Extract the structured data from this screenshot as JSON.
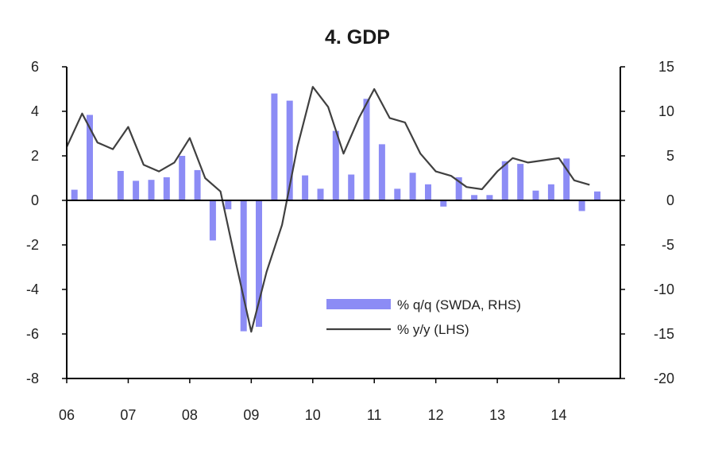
{
  "chart_data": {
    "type": "bar+line",
    "title": "4. GDP",
    "xlabel": "",
    "ylabel_left": "",
    "ylabel_right": "",
    "x_tick_labels": [
      "06",
      "07",
      "08",
      "09",
      "10",
      "11",
      "12",
      "13",
      "14"
    ],
    "x_range": [
      2006.0,
      2015.0
    ],
    "left_axis": {
      "range": [
        -8,
        6
      ],
      "ticks": [
        6,
        4,
        2,
        0,
        -2,
        -4,
        -6,
        -8
      ]
    },
    "right_axis": {
      "range": [
        -20,
        15
      ],
      "ticks": [
        15,
        10,
        5,
        0,
        -5,
        -10,
        -15,
        -20
      ]
    },
    "grid": false,
    "legend_position": "bottom-right",
    "series": [
      {
        "name": "% q/q (SWDA, RHS)",
        "type": "bar",
        "axis": "right",
        "color": "#8c8cf5",
        "x": [
          2006.125,
          2006.375,
          2006.625,
          2006.875,
          2007.125,
          2007.375,
          2007.625,
          2007.875,
          2008.125,
          2008.375,
          2008.625,
          2008.875,
          2009.125,
          2009.375,
          2009.625,
          2009.875,
          2010.125,
          2010.375,
          2010.625,
          2010.875,
          2011.125,
          2011.375,
          2011.625,
          2011.875,
          2012.125,
          2012.375,
          2012.625,
          2012.875,
          2013.125,
          2013.375,
          2013.625,
          2013.875,
          2014.125,
          2014.375,
          2014.625
        ],
        "values": [
          1.2,
          9.6,
          0,
          3.3,
          2.2,
          2.3,
          2.6,
          5.0,
          3.4,
          -4.5,
          -1.0,
          -14.7,
          -14.2,
          12.0,
          11.2,
          2.8,
          1.3,
          7.8,
          2.9,
          11.4,
          6.3,
          1.3,
          3.1,
          1.8,
          -0.7,
          2.6,
          0.6,
          0.6,
          4.4,
          4.1,
          1.1,
          1.8,
          4.7,
          -1.2,
          1.0
        ]
      },
      {
        "name": "% y/y (LHS)",
        "type": "line",
        "axis": "left",
        "color": "#404040",
        "x": [
          2006.0,
          2006.25,
          2006.5,
          2006.75,
          2007.0,
          2007.25,
          2007.5,
          2007.75,
          2008.0,
          2008.25,
          2008.5,
          2008.75,
          2009.0,
          2009.25,
          2009.5,
          2009.75,
          2010.0,
          2010.25,
          2010.5,
          2010.75,
          2011.0,
          2011.25,
          2011.5,
          2011.75,
          2012.0,
          2012.25,
          2012.5,
          2012.75,
          2013.0,
          2013.25,
          2013.5,
          2013.75,
          2014.0,
          2014.25,
          2014.5
        ],
        "values": [
          2.4,
          3.9,
          2.6,
          2.3,
          3.3,
          1.6,
          1.3,
          1.7,
          2.8,
          1.0,
          0.4,
          -2.8,
          -5.9,
          -3.2,
          -1.1,
          2.4,
          5.1,
          4.2,
          2.1,
          3.7,
          5.0,
          3.7,
          3.5,
          2.1,
          1.3,
          1.1,
          0.6,
          0.5,
          1.3,
          1.9,
          1.7,
          1.8,
          1.9,
          0.9,
          0.7
        ]
      }
    ]
  }
}
